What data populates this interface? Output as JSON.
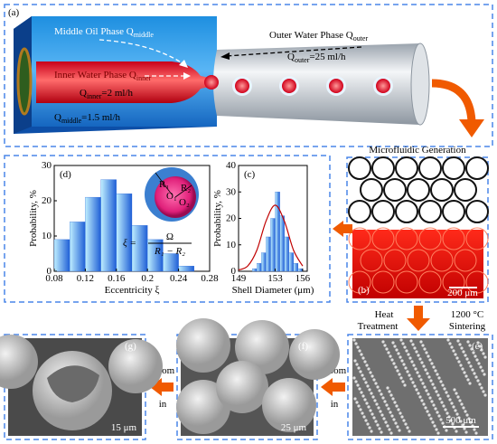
{
  "panel_a": {
    "label": "(a)",
    "middle_phase": {
      "text": "Middle Oil Phase Q",
      "sub": "middle"
    },
    "outer_phase": {
      "text": "Outer Water Phase Q",
      "sub": "outer"
    },
    "inner_phase": {
      "text": "Inner Water Phase Q",
      "sub": "inner"
    },
    "outer_rate": {
      "text": "Q",
      "sub": "outer",
      "rest": "=25 ml/h"
    },
    "inner_rate": {
      "text": "Q",
      "sub": "inner",
      "rest": "=2 ml/h"
    },
    "middle_rate": {
      "text": "Q",
      "sub": "middle",
      "rest": "=1.5 ml/h"
    }
  },
  "chart_data": [
    {
      "type": "histogram",
      "label": "(d)",
      "xlabel": "Eccentricity  ξ",
      "ylabel": "Probability, %",
      "bins": [
        0.08,
        0.1,
        0.12,
        0.14,
        0.16,
        0.18,
        0.2,
        0.22,
        0.24,
        0.26
      ],
      "values": [
        9,
        14,
        21,
        26,
        22,
        13,
        9,
        5,
        1.5
      ],
      "color": "#1f5fd6",
      "xlim": [
        0.08,
        0.28
      ],
      "xticks": [
        0.08,
        0.12,
        0.16,
        0.2,
        0.24,
        0.28
      ],
      "ylim": [
        0,
        30
      ],
      "yticks": [
        0,
        10,
        20,
        30
      ],
      "formula": {
        "lhs": "ξ =",
        "numerator": "Ω",
        "denominator": "R₁ − R₂"
      },
      "inset_labels": [
        "R₁",
        "R₂",
        "O₁",
        "O₂"
      ]
    },
    {
      "type": "histogram",
      "label": "(c)",
      "xlabel": "Shell Diameter (μm)",
      "ylabel": "Probability, %",
      "bins": [
        150.5,
        151,
        151.5,
        152,
        152.5,
        153,
        153.5,
        154,
        154.5,
        155,
        155.5,
        156
      ],
      "values": [
        1,
        3,
        7,
        13,
        20,
        30,
        21,
        13,
        7,
        3,
        1
      ],
      "color": "#1f5fd6",
      "xlim": [
        149,
        156.5
      ],
      "xticks": [
        149,
        153,
        156
      ],
      "ylim": [
        0,
        40
      ],
      "yticks": [
        0,
        10,
        20,
        30,
        40
      ],
      "curve": {
        "color": "#c00000",
        "x": [
          149,
          150,
          151,
          152,
          153,
          154,
          155,
          156
        ],
        "values": [
          0.5,
          2,
          8,
          19,
          25,
          19,
          8,
          2
        ]
      }
    }
  ],
  "panel_b": {
    "label": "(b)",
    "title": "Microfluidic Generation",
    "scale": "200 μm"
  },
  "step": {
    "left": "Heat",
    "left2": "Treatment",
    "right": "1200 °C",
    "right2": "Sintering"
  },
  "panel_e": {
    "label": "(e)",
    "scale": "500 μm"
  },
  "panel_f": {
    "label": "(f)",
    "scale": "25 μm",
    "arrow": "Zoom",
    "arrow2": "in"
  },
  "panel_g": {
    "label": "(g)",
    "scale": "15 μm",
    "arrow": "Zoom",
    "arrow2": "in"
  }
}
